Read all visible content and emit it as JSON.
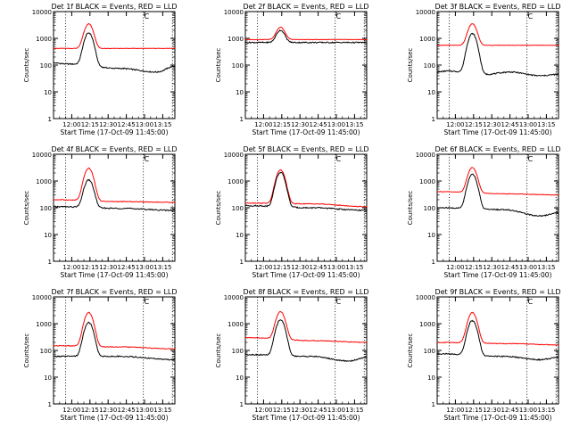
{
  "figure": {
    "background": "#ffffff",
    "axis_color": "#000000"
  },
  "chart_data": [
    {
      "type": "line",
      "title": "Det 1f BLACK = Events, RED = LLD",
      "xlabel": "Start Time (17-Oct-09 11:45:00)",
      "ylabel": "Counts/sec",
      "xlim": [
        0,
        100
      ],
      "ylog": true,
      "ylim": [
        1,
        10000
      ],
      "yticks": [
        {
          "v": 1,
          "label": "1"
        },
        {
          "v": 10,
          "label": "10"
        },
        {
          "v": 100,
          "label": "100"
        },
        {
          "v": 1000,
          "label": "1000"
        },
        {
          "v": 10000,
          "label": "10000"
        }
      ],
      "xticks": [
        {
          "x": 15,
          "label": "12:00"
        },
        {
          "x": 30,
          "label": "12:15"
        },
        {
          "x": 45,
          "label": "12:30"
        },
        {
          "x": 60,
          "label": "12:45"
        },
        {
          "x": 75,
          "label": "13:00"
        },
        {
          "x": 90,
          "label": "13:15"
        }
      ],
      "vlines": [
        10,
        74,
        98
      ],
      "marker_label": "C",
      "series": [
        {
          "name": "LLD",
          "color": "#ff0000",
          "baseline": 420,
          "bumps": [],
          "peak": 3500,
          "noise": 0.02
        },
        {
          "name": "Events",
          "color": "#000000",
          "baseline": 120,
          "bumps": [
            {
              "x": 12,
              "v": 110
            },
            {
              "x": 55,
              "v": 75
            },
            {
              "x": 85,
              "v": 55
            },
            {
              "x": 100,
              "v": 90
            }
          ],
          "peak": 1600,
          "noise": 0.05
        }
      ]
    },
    {
      "type": "line",
      "title": "Det 2f BLACK = Events, RED = LLD",
      "xlabel": "Start Time (17-Oct-09 11:45:00)",
      "ylabel": "Counts/sec",
      "xlim": [
        0,
        100
      ],
      "ylog": true,
      "ylim": [
        1,
        10000
      ],
      "yticks": [
        {
          "v": 1,
          "label": "1"
        },
        {
          "v": 10,
          "label": "10"
        },
        {
          "v": 100,
          "label": "100"
        },
        {
          "v": 1000,
          "label": "1000"
        },
        {
          "v": 10000,
          "label": "10000"
        }
      ],
      "xticks": [
        {
          "x": 15,
          "label": "12:00"
        },
        {
          "x": 30,
          "label": "12:15"
        },
        {
          "x": 45,
          "label": "12:30"
        },
        {
          "x": 60,
          "label": "12:45"
        },
        {
          "x": 75,
          "label": "13:00"
        },
        {
          "x": 90,
          "label": "13:15"
        }
      ],
      "vlines": [
        10,
        74,
        98
      ],
      "marker_label": "C",
      "series": [
        {
          "name": "LLD",
          "color": "#ff0000",
          "baseline": 900,
          "bumps": [],
          "peak": 2600,
          "noise": 0.02
        },
        {
          "name": "Events",
          "color": "#000000",
          "baseline": 700,
          "bumps": [],
          "peak": 2000,
          "noise": 0.05
        }
      ]
    },
    {
      "type": "line",
      "title": "Det 3f BLACK = Events, RED = LLD",
      "xlabel": "Start Time (17-Oct-09 11:45:00)",
      "ylabel": "Counts/sec",
      "xlim": [
        0,
        100
      ],
      "ylog": true,
      "ylim": [
        1,
        10000
      ],
      "yticks": [
        {
          "v": 1,
          "label": "1"
        },
        {
          "v": 10,
          "label": "10"
        },
        {
          "v": 100,
          "label": "100"
        },
        {
          "v": 1000,
          "label": "1000"
        },
        {
          "v": 10000,
          "label": "10000"
        }
      ],
      "xticks": [
        {
          "x": 15,
          "label": "12:00"
        },
        {
          "x": 30,
          "label": "12:15"
        },
        {
          "x": 45,
          "label": "12:30"
        },
        {
          "x": 60,
          "label": "12:45"
        },
        {
          "x": 75,
          "label": "13:00"
        },
        {
          "x": 90,
          "label": "13:15"
        }
      ],
      "vlines": [
        10,
        74,
        98
      ],
      "marker_label": "C",
      "series": [
        {
          "name": "LLD",
          "color": "#ff0000",
          "baseline": 550,
          "bumps": [],
          "peak": 3500,
          "noise": 0.02
        },
        {
          "name": "Events",
          "color": "#000000",
          "baseline": 55,
          "bumps": [
            {
              "x": 8,
              "v": 60
            },
            {
              "x": 40,
              "v": 45
            },
            {
              "x": 60,
              "v": 55
            },
            {
              "x": 85,
              "v": 40
            },
            {
              "x": 100,
              "v": 45
            }
          ],
          "peak": 1500,
          "noise": 0.05
        }
      ]
    },
    {
      "type": "line",
      "title": "Det 4f BLACK = Events, RED = LLD",
      "xlabel": "Start Time (17-Oct-09 11:45:00)",
      "ylabel": "Counts/sec",
      "xlim": [
        0,
        100
      ],
      "ylog": true,
      "ylim": [
        1,
        10000
      ],
      "yticks": [
        {
          "v": 1,
          "label": "1"
        },
        {
          "v": 10,
          "label": "10"
        },
        {
          "v": 100,
          "label": "100"
        },
        {
          "v": 1000,
          "label": "1000"
        },
        {
          "v": 10000,
          "label": "10000"
        }
      ],
      "xticks": [
        {
          "x": 15,
          "label": "12:00"
        },
        {
          "x": 30,
          "label": "12:15"
        },
        {
          "x": 45,
          "label": "12:30"
        },
        {
          "x": 60,
          "label": "12:45"
        },
        {
          "x": 75,
          "label": "13:00"
        },
        {
          "x": 90,
          "label": "13:15"
        }
      ],
      "vlines": [
        10,
        74,
        98
      ],
      "marker_label": "C",
      "series": [
        {
          "name": "LLD",
          "color": "#ff0000",
          "baseline": 200,
          "bumps": [
            {
              "x": 55,
              "v": 170
            },
            {
              "x": 100,
              "v": 160
            }
          ],
          "peak": 3000,
          "noise": 0.03
        },
        {
          "name": "Events",
          "color": "#000000",
          "baseline": 110,
          "bumps": [
            {
              "x": 55,
              "v": 95
            },
            {
              "x": 100,
              "v": 80
            }
          ],
          "peak": 1100,
          "noise": 0.05
        }
      ]
    },
    {
      "type": "line",
      "title": "Det 5f BLACK = Events, RED = LLD",
      "xlabel": "Start Time (17-Oct-09 11:45:00)",
      "ylabel": "Counts/sec",
      "xlim": [
        0,
        100
      ],
      "ylog": true,
      "ylim": [
        1,
        10000
      ],
      "yticks": [
        {
          "v": 1,
          "label": "1"
        },
        {
          "v": 10,
          "label": "10"
        },
        {
          "v": 100,
          "label": "100"
        },
        {
          "v": 1000,
          "label": "1000"
        },
        {
          "v": 10000,
          "label": "10000"
        }
      ],
      "xticks": [
        {
          "x": 15,
          "label": "12:00"
        },
        {
          "x": 30,
          "label": "12:15"
        },
        {
          "x": 45,
          "label": "12:30"
        },
        {
          "x": 60,
          "label": "12:45"
        },
        {
          "x": 75,
          "label": "13:00"
        },
        {
          "x": 90,
          "label": "13:15"
        }
      ],
      "vlines": [
        10,
        74,
        98
      ],
      "marker_label": "C",
      "series": [
        {
          "name": "LLD",
          "color": "#ff0000",
          "baseline": 150,
          "bumps": [
            {
              "x": 55,
              "v": 140
            },
            {
              "x": 100,
              "v": 110
            }
          ],
          "peak": 2600,
          "noise": 0.03
        },
        {
          "name": "Events",
          "color": "#000000",
          "baseline": 120,
          "bumps": [
            {
              "x": 55,
              "v": 100
            },
            {
              "x": 100,
              "v": 80
            }
          ],
          "peak": 2100,
          "noise": 0.05
        }
      ]
    },
    {
      "type": "line",
      "title": "Det 6f BLACK = Events, RED = LLD",
      "xlabel": "Start Time (17-Oct-09 11:45:00)",
      "ylabel": "Counts/sec",
      "xlim": [
        0,
        100
      ],
      "ylog": true,
      "ylim": [
        1,
        10000
      ],
      "yticks": [
        {
          "v": 1,
          "label": "1"
        },
        {
          "v": 10,
          "label": "10"
        },
        {
          "v": 100,
          "label": "100"
        },
        {
          "v": 1000,
          "label": "1000"
        },
        {
          "v": 10000,
          "label": "10000"
        }
      ],
      "xticks": [
        {
          "x": 15,
          "label": "12:00"
        },
        {
          "x": 30,
          "label": "12:15"
        },
        {
          "x": 45,
          "label": "12:30"
        },
        {
          "x": 60,
          "label": "12:45"
        },
        {
          "x": 75,
          "label": "13:00"
        },
        {
          "x": 90,
          "label": "13:15"
        }
      ],
      "vlines": [
        10,
        74,
        98
      ],
      "marker_label": "C",
      "series": [
        {
          "name": "LLD",
          "color": "#ff0000",
          "baseline": 400,
          "bumps": [
            {
              "x": 60,
              "v": 330
            },
            {
              "x": 100,
              "v": 300
            }
          ],
          "peak": 3200,
          "noise": 0.02
        },
        {
          "name": "Events",
          "color": "#000000",
          "baseline": 100,
          "bumps": [
            {
              "x": 55,
              "v": 85
            },
            {
              "x": 85,
              "v": 50
            },
            {
              "x": 100,
              "v": 65
            }
          ],
          "peak": 1800,
          "noise": 0.05
        }
      ]
    },
    {
      "type": "line",
      "title": "Det 7f BLACK = Events, RED = LLD",
      "xlabel": "Start Time (17-Oct-09 11:45:00)",
      "ylabel": "Counts/sec",
      "xlim": [
        0,
        100
      ],
      "ylog": true,
      "ylim": [
        1,
        10000
      ],
      "yticks": [
        {
          "v": 1,
          "label": "1"
        },
        {
          "v": 10,
          "label": "10"
        },
        {
          "v": 100,
          "label": "100"
        },
        {
          "v": 1000,
          "label": "1000"
        },
        {
          "v": 10000,
          "label": "10000"
        }
      ],
      "xticks": [
        {
          "x": 15,
          "label": "12:00"
        },
        {
          "x": 30,
          "label": "12:15"
        },
        {
          "x": 45,
          "label": "12:30"
        },
        {
          "x": 60,
          "label": "12:45"
        },
        {
          "x": 75,
          "label": "13:00"
        },
        {
          "x": 90,
          "label": "13:15"
        }
      ],
      "vlines": [
        10,
        74,
        98
      ],
      "marker_label": "C",
      "series": [
        {
          "name": "LLD",
          "color": "#ff0000",
          "baseline": 150,
          "bumps": [
            {
              "x": 55,
              "v": 135
            },
            {
              "x": 100,
              "v": 115
            }
          ],
          "peak": 2600,
          "noise": 0.03
        },
        {
          "name": "Events",
          "color": "#000000",
          "baseline": 60,
          "bumps": [
            {
              "x": 55,
              "v": 60
            },
            {
              "x": 100,
              "v": 45
            }
          ],
          "peak": 1100,
          "noise": 0.05
        }
      ]
    },
    {
      "type": "line",
      "title": "Det 8f BLACK = Events, RED = LLD",
      "xlabel": "Start Time (17-Oct-09 11:45:00)",
      "ylabel": "Counts/sec",
      "xlim": [
        0,
        100
      ],
      "ylog": true,
      "ylim": [
        1,
        10000
      ],
      "yticks": [
        {
          "v": 1,
          "label": "1"
        },
        {
          "v": 10,
          "label": "10"
        },
        {
          "v": 100,
          "label": "100"
        },
        {
          "v": 1000,
          "label": "1000"
        },
        {
          "v": 10000,
          "label": "10000"
        }
      ],
      "xticks": [
        {
          "x": 15,
          "label": "12:00"
        },
        {
          "x": 30,
          "label": "12:15"
        },
        {
          "x": 45,
          "label": "12:30"
        },
        {
          "x": 60,
          "label": "12:45"
        },
        {
          "x": 75,
          "label": "13:00"
        },
        {
          "x": 90,
          "label": "13:15"
        }
      ],
      "vlines": [
        10,
        74,
        98
      ],
      "marker_label": "C",
      "series": [
        {
          "name": "LLD",
          "color": "#ff0000",
          "baseline": 300,
          "bumps": [
            {
              "x": 60,
              "v": 230
            },
            {
              "x": 100,
              "v": 200
            }
          ],
          "peak": 2800,
          "noise": 0.03
        },
        {
          "name": "Events",
          "color": "#000000",
          "baseline": 70,
          "bumps": [
            {
              "x": 55,
              "v": 60
            },
            {
              "x": 85,
              "v": 40
            },
            {
              "x": 100,
              "v": 55
            }
          ],
          "peak": 1400,
          "noise": 0.05
        }
      ]
    },
    {
      "type": "line",
      "title": "Det 9f BLACK = Events, RED = LLD",
      "xlabel": "Start Time (17-Oct-09 11:45:00)",
      "ylabel": "Counts/sec",
      "xlim": [
        0,
        100
      ],
      "ylog": true,
      "ylim": [
        1,
        10000
      ],
      "yticks": [
        {
          "v": 1,
          "label": "1"
        },
        {
          "v": 10,
          "label": "10"
        },
        {
          "v": 100,
          "label": "100"
        },
        {
          "v": 1000,
          "label": "1000"
        },
        {
          "v": 10000,
          "label": "10000"
        }
      ],
      "xticks": [
        {
          "x": 15,
          "label": "12:00"
        },
        {
          "x": 30,
          "label": "12:15"
        },
        {
          "x": 45,
          "label": "12:30"
        },
        {
          "x": 60,
          "label": "12:45"
        },
        {
          "x": 75,
          "label": "13:00"
        },
        {
          "x": 90,
          "label": "13:15"
        }
      ],
      "vlines": [
        10,
        74,
        98
      ],
      "marker_label": "C",
      "series": [
        {
          "name": "LLD",
          "color": "#ff0000",
          "baseline": 200,
          "bumps": [
            {
              "x": 60,
              "v": 180
            },
            {
              "x": 100,
              "v": 160
            }
          ],
          "peak": 2600,
          "noise": 0.03
        },
        {
          "name": "Events",
          "color": "#000000",
          "baseline": 75,
          "bumps": [
            {
              "x": 55,
              "v": 60
            },
            {
              "x": 85,
              "v": 45
            },
            {
              "x": 100,
              "v": 55
            }
          ],
          "peak": 1300,
          "noise": 0.05
        }
      ]
    }
  ]
}
